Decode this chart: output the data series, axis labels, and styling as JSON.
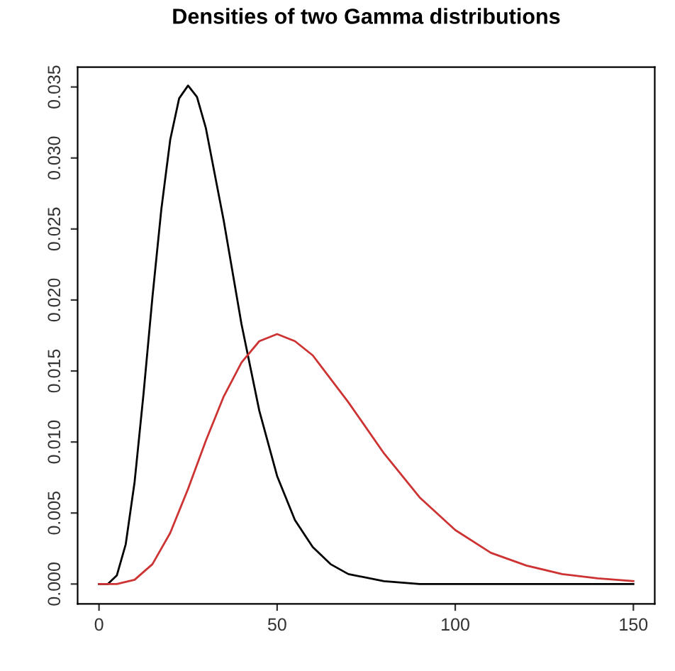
{
  "chart_data": {
    "type": "line",
    "title": "Densities of two Gamma distributions",
    "series": [
      {
        "color": "#000000",
        "x": [
          0,
          2.5,
          5,
          7.5,
          10,
          12.5,
          15,
          17.5,
          20,
          22.5,
          25,
          27.5,
          30,
          35,
          40,
          45,
          50,
          55,
          60,
          65,
          70,
          80,
          90,
          100,
          150
        ],
        "values": [
          0,
          0.0,
          0.0006,
          0.0028,
          0.0072,
          0.0134,
          0.0202,
          0.0264,
          0.0313,
          0.0342,
          0.0351,
          0.0343,
          0.0321,
          0.0256,
          0.0183,
          0.0122,
          0.0076,
          0.0045,
          0.0026,
          0.0014,
          0.0007,
          0.0002,
          0.0,
          0,
          0
        ]
      },
      {
        "color": "#cd3333",
        "x": [
          0,
          5,
          10,
          15,
          20,
          25,
          30,
          35,
          40,
          45,
          50,
          55,
          60,
          70,
          80,
          90,
          100,
          110,
          120,
          130,
          140,
          150
        ],
        "values": [
          0,
          0.0,
          0.0003,
          0.0014,
          0.0036,
          0.0067,
          0.0101,
          0.0132,
          0.0156,
          0.0171,
          0.0176,
          0.0171,
          0.0161,
          0.0128,
          0.0092,
          0.0061,
          0.0038,
          0.0022,
          0.0013,
          0.0007,
          0.0004,
          0.0002
        ]
      }
    ],
    "xlim": [
      -6,
      156
    ],
    "xticks": [
      0,
      50,
      100,
      150
    ],
    "ylim": [
      -0.0014,
      0.0364
    ],
    "yticks": [
      {
        "value": 0,
        "label": "0.000"
      },
      {
        "value": 0.005,
        "label": "0.005"
      },
      {
        "value": 0.01,
        "label": "0.010"
      },
      {
        "value": 0.015,
        "label": "0.015"
      },
      {
        "value": 0.02,
        "label": "0.020"
      },
      {
        "value": 0.025,
        "label": "0.025"
      },
      {
        "value": 0.03,
        "label": "0.030"
      },
      {
        "value": 0.035,
        "label": "0.035"
      }
    ],
    "grid": false,
    "legend": false,
    "marker": "none",
    "line_style": "solid"
  }
}
